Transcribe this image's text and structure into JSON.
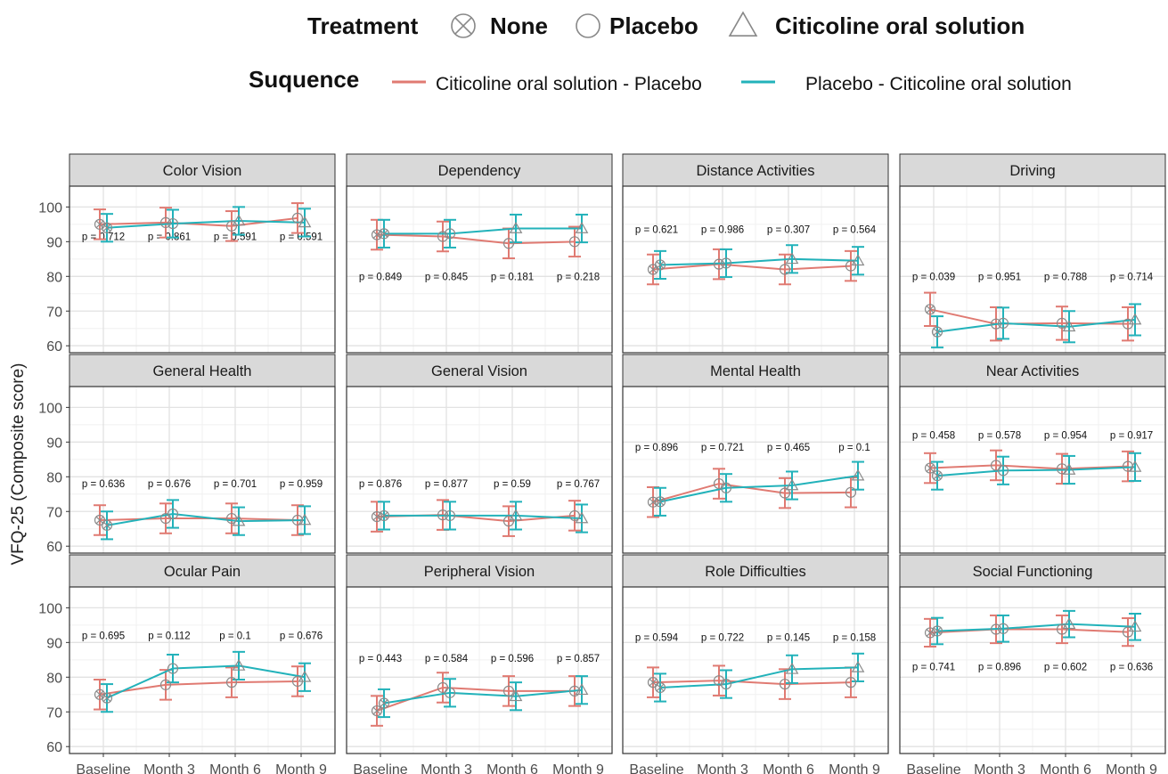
{
  "chart_data": {
    "type": "line",
    "ylabel": "VFQ-25 (Composite score)",
    "ylim": [
      58,
      106
    ],
    "yticks": [
      60,
      70,
      80,
      90,
      100
    ],
    "categories": [
      "Baseline",
      "Month 3",
      "Month 6",
      "Month 9"
    ],
    "grid": true,
    "legend": {
      "position": "top",
      "treatment": {
        "title": "Treatment",
        "entries": [
          {
            "label": "None",
            "shape": "circle-x"
          },
          {
            "label": "Placebo",
            "shape": "circle"
          },
          {
            "label": "Citicoline oral solution",
            "shape": "triangle"
          }
        ]
      },
      "sequence": {
        "title": "Suquence",
        "entries": [
          {
            "label": "Citicoline oral solution - Placebo",
            "color": "#E07A72"
          },
          {
            "label": "Placebo - Citicoline oral solution",
            "color": "#22B2BA"
          }
        ]
      }
    },
    "series_styles": [
      {
        "name": "Citicoline oral solution - Placebo",
        "color": "#E07A72",
        "shapes": [
          "circle-x",
          "circle",
          "circle",
          "circle"
        ]
      },
      {
        "name": "Placebo - Citicoline oral solution",
        "color": "#22B2BA",
        "shapes": [
          "circle-x",
          "circle",
          "triangle",
          "triangle"
        ]
      }
    ],
    "panels": [
      {
        "title": "Color Vision",
        "pvalues": [
          "p = 0.712",
          "p = 0.861",
          "p = 0.591",
          "p = 0.591"
        ],
        "p_y": 91.5,
        "a": [
          95.0,
          95.5,
          94.5,
          96.8
        ],
        "a_err": [
          4.3,
          4.3,
          4.3,
          4.3
        ],
        "b": [
          94.0,
          95.2,
          96.0,
          95.5
        ],
        "b_err": [
          4.0,
          4.0,
          4.0,
          4.0
        ]
      },
      {
        "title": "Dependency",
        "pvalues": [
          "p = 0.849",
          "p = 0.845",
          "p = 0.181",
          "p = 0.218"
        ],
        "p_y": 80,
        "a": [
          92.0,
          91.5,
          89.5,
          90.0
        ],
        "a_err": [
          4.3,
          4.3,
          4.3,
          4.3
        ],
        "b": [
          92.3,
          92.3,
          93.8,
          93.8
        ],
        "b_err": [
          4.0,
          4.0,
          4.0,
          4.0
        ]
      },
      {
        "title": "Distance Activities",
        "pvalues": [
          "p = 0.621",
          "p = 0.986",
          "p = 0.307",
          "p = 0.564"
        ],
        "p_y": 93.5,
        "a": [
          82.0,
          83.5,
          82.0,
          83.0
        ],
        "a_err": [
          4.3,
          4.3,
          4.3,
          4.3
        ],
        "b": [
          83.3,
          83.8,
          85.0,
          84.5
        ],
        "b_err": [
          4.0,
          4.0,
          4.0,
          4.0
        ]
      },
      {
        "title": "Driving",
        "pvalues": [
          "p = 0.039",
          "p = 0.951",
          "p = 0.788",
          "p = 0.714"
        ],
        "p_y": 80,
        "a": [
          70.5,
          66.3,
          66.5,
          66.3
        ],
        "a_err": [
          4.8,
          4.8,
          4.8,
          4.8
        ],
        "b": [
          64.0,
          66.5,
          65.5,
          67.5
        ],
        "b_err": [
          4.5,
          4.5,
          4.5,
          4.5
        ]
      },
      {
        "title": "General Health",
        "pvalues": [
          "p = 0.636",
          "p = 0.676",
          "p = 0.701",
          "p = 0.959"
        ],
        "p_y": 78,
        "a": [
          67.5,
          68.0,
          68.0,
          67.5
        ],
        "a_err": [
          4.3,
          4.3,
          4.3,
          4.3
        ],
        "b": [
          66.0,
          69.3,
          67.2,
          67.5
        ],
        "b_err": [
          4.0,
          4.0,
          4.0,
          4.0
        ]
      },
      {
        "title": "General Vision",
        "pvalues": [
          "p = 0.876",
          "p = 0.877",
          "p = 0.59",
          "p = 0.767"
        ],
        "p_y": 78,
        "a": [
          68.5,
          69.0,
          67.2,
          68.8
        ],
        "a_err": [
          4.3,
          4.3,
          4.3,
          4.3
        ],
        "b": [
          68.8,
          68.8,
          68.8,
          68.0
        ],
        "b_err": [
          4.0,
          4.0,
          4.0,
          4.0
        ]
      },
      {
        "title": "Mental Health",
        "pvalues": [
          "p = 0.896",
          "p = 0.721",
          "p = 0.465",
          "p = 0.1"
        ],
        "p_y": 88.5,
        "a": [
          72.7,
          78.0,
          75.3,
          75.5
        ],
        "a_err": [
          4.3,
          4.3,
          4.3,
          4.3
        ],
        "b": [
          72.8,
          76.8,
          77.5,
          80.3
        ],
        "b_err": [
          4.0,
          4.0,
          4.0,
          4.0
        ]
      },
      {
        "title": "Near Activities",
        "pvalues": [
          "p = 0.458",
          "p = 0.578",
          "p = 0.954",
          "p = 0.917"
        ],
        "p_y": 92,
        "a": [
          82.5,
          83.3,
          82.3,
          83.0
        ],
        "a_err": [
          4.3,
          4.3,
          4.3,
          4.3
        ],
        "b": [
          80.3,
          81.8,
          82.0,
          82.8
        ],
        "b_err": [
          4.0,
          4.0,
          4.0,
          4.0
        ]
      },
      {
        "title": "Ocular Pain",
        "pvalues": [
          "p = 0.695",
          "p = 0.112",
          "p = 0.1",
          "p = 0.676"
        ],
        "p_y": 92,
        "a": [
          75.0,
          77.8,
          78.5,
          78.8
        ],
        "a_err": [
          4.3,
          4.3,
          4.3,
          4.3
        ],
        "b": [
          74.0,
          82.5,
          83.3,
          80.0
        ],
        "b_err": [
          4.0,
          4.0,
          4.0,
          4.0
        ]
      },
      {
        "title": "Peripheral Vision",
        "pvalues": [
          "p = 0.443",
          "p = 0.584",
          "p = 0.596",
          "p = 0.857"
        ],
        "p_y": 85.5,
        "a": [
          70.3,
          77.0,
          76.0,
          76.0
        ],
        "a_err": [
          4.3,
          4.3,
          4.3,
          4.3
        ],
        "b": [
          72.5,
          75.5,
          74.5,
          76.3
        ],
        "b_err": [
          4.0,
          4.0,
          4.0,
          4.0
        ]
      },
      {
        "title": "Role Difficulties",
        "pvalues": [
          "p = 0.594",
          "p = 0.722",
          "p = 0.145",
          "p = 0.158"
        ],
        "p_y": 91.5,
        "a": [
          78.5,
          79.0,
          78.0,
          78.5
        ],
        "a_err": [
          4.3,
          4.3,
          4.3,
          4.3
        ],
        "b": [
          77.0,
          78.0,
          82.3,
          82.8
        ],
        "b_err": [
          4.0,
          4.0,
          4.0,
          4.0
        ]
      },
      {
        "title": "Social Functioning",
        "pvalues": [
          "p = 0.741",
          "p = 0.896",
          "p = 0.602",
          "p = 0.636"
        ],
        "p_y": 83,
        "a": [
          92.8,
          93.8,
          93.8,
          93.0
        ],
        "a_err": [
          4.0,
          4.0,
          4.0,
          4.0
        ],
        "b": [
          93.3,
          94.0,
          95.3,
          94.5
        ],
        "b_err": [
          3.8,
          3.8,
          3.8,
          3.8
        ]
      }
    ]
  }
}
